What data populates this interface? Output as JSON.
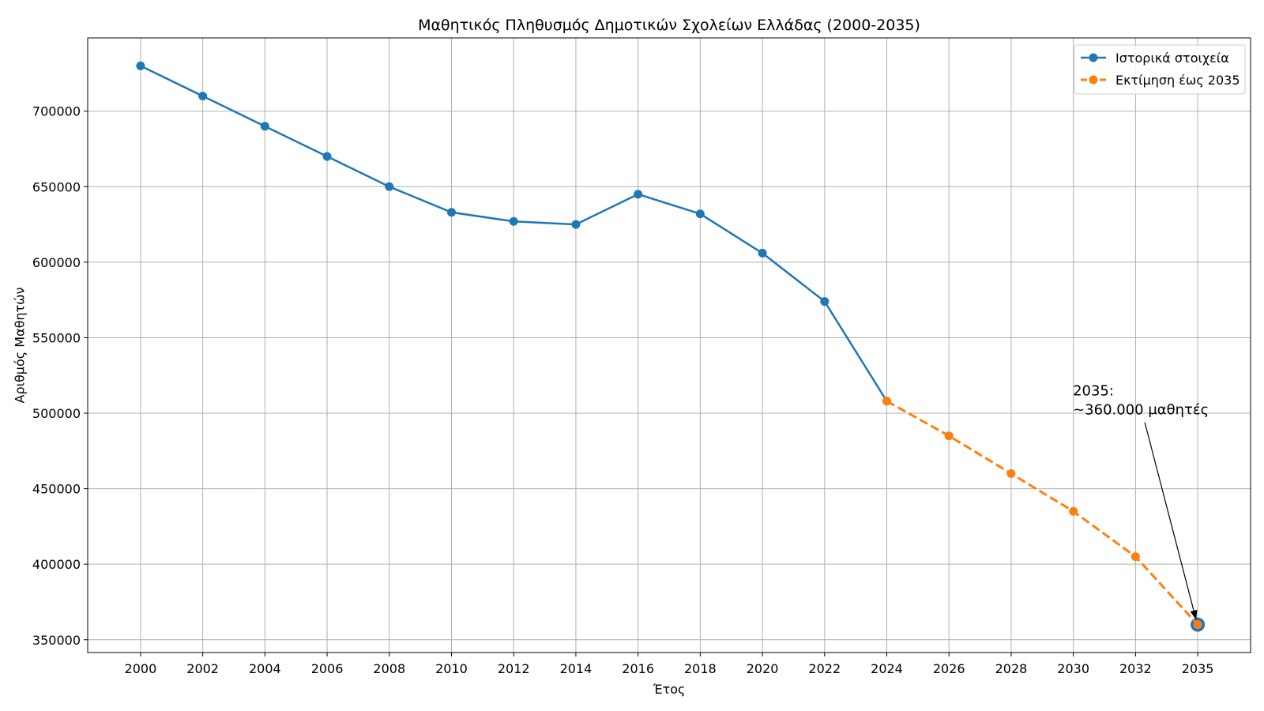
{
  "chart_data": {
    "type": "line",
    "title": "Μαθητικός Πληθυσμός Δημοτικών Σχολείων Ελλάδας (2000-2035)",
    "xlabel": "Έτος",
    "ylabel": "Αριθμός Μαθητών",
    "categories": [
      2000,
      2002,
      2004,
      2006,
      2008,
      2010,
      2012,
      2014,
      2016,
      2018,
      2020,
      2022,
      2024,
      2026,
      2028,
      2030,
      2032,
      2035
    ],
    "y_ticks": [
      350000,
      400000,
      450000,
      500000,
      550000,
      600000,
      650000,
      700000
    ],
    "ylim": [
      341500,
      748500
    ],
    "grid": true,
    "legend_position": "top-right",
    "series": [
      {
        "name": "Ιστορικά στοιχεία",
        "color": "#1f77b4",
        "dashed": false,
        "markers": true,
        "x": [
          2000,
          2002,
          2004,
          2006,
          2008,
          2010,
          2012,
          2014,
          2016,
          2018,
          2020,
          2022,
          2024
        ],
        "y": [
          730000,
          710000,
          690000,
          670000,
          650000,
          633000,
          627000,
          625000,
          645000,
          632000,
          606000,
          574000,
          508000
        ]
      },
      {
        "name": "Εκτίμηση έως 2035",
        "color": "#ff7f0e",
        "dashed": true,
        "markers": true,
        "x": [
          2024,
          2026,
          2028,
          2030,
          2032,
          2035
        ],
        "y": [
          508000,
          485000,
          460000,
          435000,
          405000,
          360000
        ]
      }
    ],
    "highlight_point": {
      "x": 2035,
      "y": 360000,
      "color": "#1f77b4"
    },
    "annotation": {
      "lines": [
        "2035:",
        "~360.000 μαθητές"
      ],
      "target": {
        "x": 2035,
        "y": 360000
      }
    }
  }
}
